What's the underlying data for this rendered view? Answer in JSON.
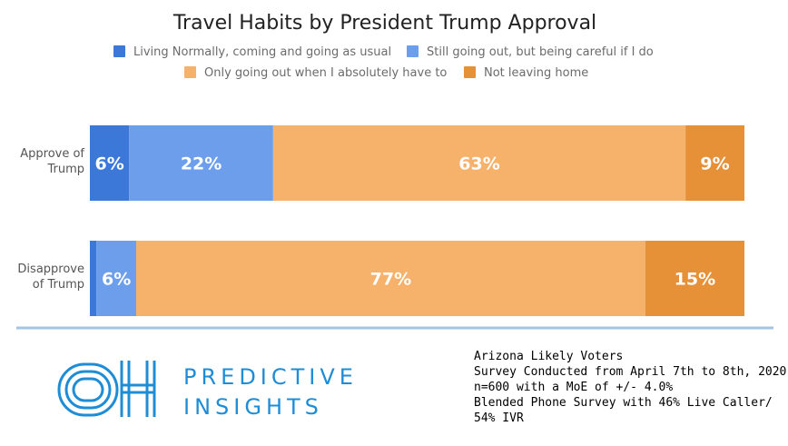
{
  "chart_data": {
    "type": "bar",
    "orientation": "horizontal",
    "stacked": true,
    "title": "Travel Habits by President Trump Approval",
    "legend_position": "top",
    "categories": [
      [
        "Approve of",
        "Trump"
      ],
      [
        "Disapprove",
        "of Trump"
      ]
    ],
    "series": [
      {
        "name": "Living Normally, coming and going as usual",
        "color": "#3c78d8",
        "values": [
          6,
          1
        ],
        "labels": [
          "6%",
          ""
        ]
      },
      {
        "name": "Still going out, but being careful if I do",
        "color": "#6d9eeb",
        "values": [
          22,
          6
        ],
        "labels": [
          "22%",
          "6%"
        ]
      },
      {
        "name": "Only going out when I absolutely have to",
        "color": "#f6b26b",
        "values": [
          63,
          77
        ],
        "labels": [
          "63%",
          "77%"
        ]
      },
      {
        "name": "Not leaving home",
        "color": "#e69138",
        "values": [
          9,
          15
        ],
        "labels": [
          "9%",
          "15%"
        ]
      }
    ],
    "xlim": [
      0,
      100
    ]
  },
  "logo": {
    "brand_line1": "PREDICTIVE",
    "brand_line2": "INSIGHTS",
    "mark_color": "#1f8dd6"
  },
  "divider_color": "#9fc5e8",
  "footnote": {
    "line1": "Arizona Likely Voters",
    "line2": "Survey Conducted from April 7th to 8th, 2020",
    "line3": "n=600 with a MoE of +/- 4.0%",
    "line4": "Blended Phone Survey with 46% Live Caller/ 54% IVR"
  }
}
